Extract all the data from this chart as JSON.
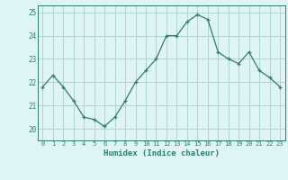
{
  "x": [
    0,
    1,
    2,
    3,
    4,
    5,
    6,
    7,
    8,
    9,
    10,
    11,
    12,
    13,
    14,
    15,
    16,
    17,
    18,
    19,
    20,
    21,
    22,
    23
  ],
  "y": [
    21.8,
    22.3,
    21.8,
    21.2,
    20.5,
    20.4,
    20.1,
    20.5,
    21.2,
    22.0,
    22.5,
    23.0,
    24.0,
    24.0,
    24.6,
    24.9,
    24.7,
    23.3,
    23.0,
    22.8,
    23.3,
    22.5,
    22.2,
    21.8
  ],
  "xlabel": "Humidex (Indice chaleur)",
  "ylim": [
    19.5,
    25.3
  ],
  "xlim": [
    -0.5,
    23.5
  ],
  "yticks": [
    20,
    21,
    22,
    23,
    24,
    25
  ],
  "xticks": [
    0,
    1,
    2,
    3,
    4,
    5,
    6,
    7,
    8,
    9,
    10,
    11,
    12,
    13,
    14,
    15,
    16,
    17,
    18,
    19,
    20,
    21,
    22,
    23
  ],
  "xtick_labels": [
    "0",
    "1",
    "2",
    "3",
    "4",
    "5",
    "6",
    "7",
    "8",
    "9",
    "10",
    "11",
    "12",
    "13",
    "14",
    "15",
    "16",
    "17",
    "18",
    "19",
    "20",
    "21",
    "22",
    "23"
  ],
  "line_color": "#2e7d6e",
  "marker": "+",
  "bg_color": "#dff4f4",
  "grid_color": "#aed4d4",
  "axis_color": "#2e7d6e",
  "tick_color": "#2e7d6e",
  "label_color": "#2e7d6e"
}
